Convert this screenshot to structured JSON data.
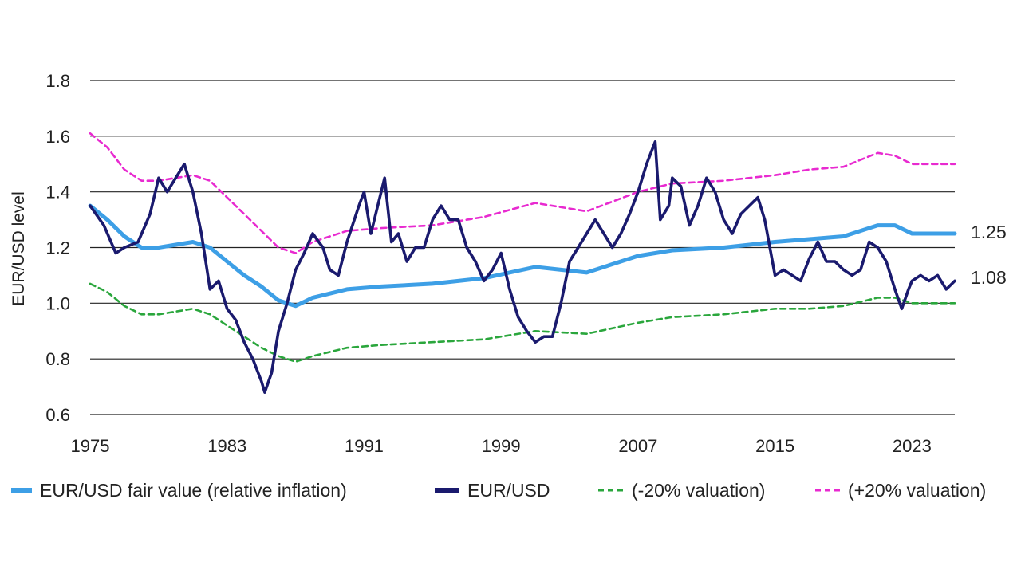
{
  "chart_data": {
    "type": "line",
    "title": "",
    "xlabel": "",
    "ylabel": "EUR/USD level",
    "xlim": [
      1975,
      2025.5
    ],
    "ylim": [
      0.6,
      1.8
    ],
    "x_ticks": [
      1975,
      1983,
      1991,
      1999,
      2007,
      2015,
      2023
    ],
    "x_tick_labels": [
      "1975",
      "1983",
      "1991",
      "1999",
      "2007",
      "2015",
      "2023"
    ],
    "y_ticks": [
      0.6,
      0.8,
      1.0,
      1.2,
      1.4,
      1.6,
      1.8
    ],
    "y_tick_labels": [
      "0.6",
      "0.8",
      "1.0",
      "1.2",
      "1.4",
      "1.6",
      "1.8"
    ],
    "grid": "horizontal",
    "legend_position": "bottom",
    "colors": {
      "fair_value": "#3d9fe6",
      "eurusd": "#1a1a6e",
      "minus20": "#2aa63c",
      "plus20": "#e82ad0",
      "grid": "#222222"
    },
    "end_labels": [
      "1.25",
      "1.08"
    ],
    "series": [
      {
        "name": "EUR/USD fair value (relative inflation)",
        "style": "solid-thick",
        "x": [
          1975,
          1976,
          1977,
          1978,
          1979,
          1980,
          1981,
          1982,
          1983,
          1984,
          1985,
          1986,
          1987,
          1988,
          1990,
          1992,
          1995,
          1998,
          2001,
          2004,
          2007,
          2009,
          2012,
          2015,
          2017,
          2019,
          2021,
          2022,
          2023,
          2025.5
        ],
        "y": [
          1.35,
          1.3,
          1.24,
          1.2,
          1.2,
          1.21,
          1.22,
          1.2,
          1.15,
          1.1,
          1.06,
          1.01,
          0.99,
          1.02,
          1.05,
          1.06,
          1.07,
          1.09,
          1.13,
          1.11,
          1.17,
          1.19,
          1.2,
          1.22,
          1.23,
          1.24,
          1.28,
          1.28,
          1.25,
          1.25
        ]
      },
      {
        "name": "EUR/USD",
        "style": "solid-dark",
        "x": [
          1975,
          1975.8,
          1976.5,
          1977,
          1977.8,
          1978.5,
          1979,
          1979.5,
          1980,
          1980.5,
          1981,
          1981.5,
          1982,
          1982.5,
          1983,
          1983.5,
          1984,
          1984.5,
          1985,
          1985.2,
          1985.6,
          1986,
          1986.5,
          1987,
          1987.5,
          1988,
          1988.6,
          1989,
          1989.5,
          1990,
          1990.7,
          1991,
          1991.4,
          1991.8,
          1992.2,
          1992.6,
          1993,
          1993.5,
          1994,
          1994.5,
          1995,
          1995.5,
          1996,
          1996.5,
          1997,
          1997.5,
          1998,
          1998.5,
          1999,
          1999.5,
          2000,
          2000.5,
          2001,
          2001.5,
          2002,
          2002.5,
          2003,
          2003.5,
          2004,
          2004.5,
          2005,
          2005.5,
          2006,
          2006.5,
          2007,
          2007.5,
          2008,
          2008.3,
          2008.8,
          2009,
          2009.5,
          2010,
          2010.5,
          2011,
          2011.5,
          2012,
          2012.5,
          2013,
          2013.5,
          2014,
          2014.4,
          2015,
          2015.5,
          2016,
          2016.5,
          2017,
          2017.5,
          2018,
          2018.5,
          2019,
          2019.5,
          2020,
          2020.5,
          2021,
          2021.5,
          2022,
          2022.4,
          2022.8,
          2023,
          2023.5,
          2024,
          2024.5,
          2025,
          2025.5
        ],
        "y": [
          1.35,
          1.28,
          1.18,
          1.2,
          1.22,
          1.32,
          1.45,
          1.4,
          1.45,
          1.5,
          1.4,
          1.25,
          1.05,
          1.08,
          0.98,
          0.94,
          0.86,
          0.8,
          0.72,
          0.68,
          0.75,
          0.9,
          1.0,
          1.12,
          1.18,
          1.25,
          1.2,
          1.12,
          1.1,
          1.22,
          1.35,
          1.4,
          1.25,
          1.35,
          1.45,
          1.22,
          1.25,
          1.15,
          1.2,
          1.2,
          1.3,
          1.35,
          1.3,
          1.3,
          1.2,
          1.15,
          1.08,
          1.12,
          1.18,
          1.05,
          0.95,
          0.9,
          0.86,
          0.88,
          0.88,
          1.0,
          1.15,
          1.2,
          1.25,
          1.3,
          1.25,
          1.2,
          1.25,
          1.32,
          1.4,
          1.5,
          1.58,
          1.3,
          1.35,
          1.45,
          1.42,
          1.28,
          1.35,
          1.45,
          1.4,
          1.3,
          1.25,
          1.32,
          1.35,
          1.38,
          1.3,
          1.1,
          1.12,
          1.1,
          1.08,
          1.16,
          1.22,
          1.15,
          1.15,
          1.12,
          1.1,
          1.12,
          1.22,
          1.2,
          1.15,
          1.05,
          0.98,
          1.05,
          1.08,
          1.1,
          1.08,
          1.1,
          1.05,
          1.08
        ]
      },
      {
        "name": "(-20% valuation)",
        "style": "dashed-green",
        "x": [
          1975,
          1976,
          1977,
          1978,
          1979,
          1980,
          1981,
          1982,
          1983,
          1984,
          1985,
          1986,
          1987,
          1988,
          1990,
          1992,
          1995,
          1998,
          2001,
          2004,
          2007,
          2009,
          2012,
          2015,
          2017,
          2019,
          2021,
          2022,
          2023,
          2025.5
        ],
        "y": [
          1.07,
          1.04,
          0.99,
          0.96,
          0.96,
          0.97,
          0.98,
          0.96,
          0.92,
          0.88,
          0.84,
          0.81,
          0.79,
          0.81,
          0.84,
          0.85,
          0.86,
          0.87,
          0.9,
          0.89,
          0.93,
          0.95,
          0.96,
          0.98,
          0.98,
          0.99,
          1.02,
          1.02,
          1.0,
          1.0
        ]
      },
      {
        "name": "(+20% valuation)",
        "style": "dashed-magenta",
        "x": [
          1975,
          1976,
          1977,
          1978,
          1979,
          1980,
          1981,
          1982,
          1983,
          1984,
          1985,
          1986,
          1987,
          1988,
          1990,
          1992,
          1995,
          1998,
          2001,
          2004,
          2007,
          2009,
          2012,
          2015,
          2017,
          2019,
          2021,
          2022,
          2023,
          2025.5
        ],
        "y": [
          1.61,
          1.56,
          1.48,
          1.44,
          1.44,
          1.45,
          1.46,
          1.44,
          1.38,
          1.32,
          1.26,
          1.2,
          1.18,
          1.22,
          1.26,
          1.27,
          1.28,
          1.31,
          1.36,
          1.33,
          1.4,
          1.43,
          1.44,
          1.46,
          1.48,
          1.49,
          1.54,
          1.53,
          1.5,
          1.5
        ]
      }
    ]
  }
}
